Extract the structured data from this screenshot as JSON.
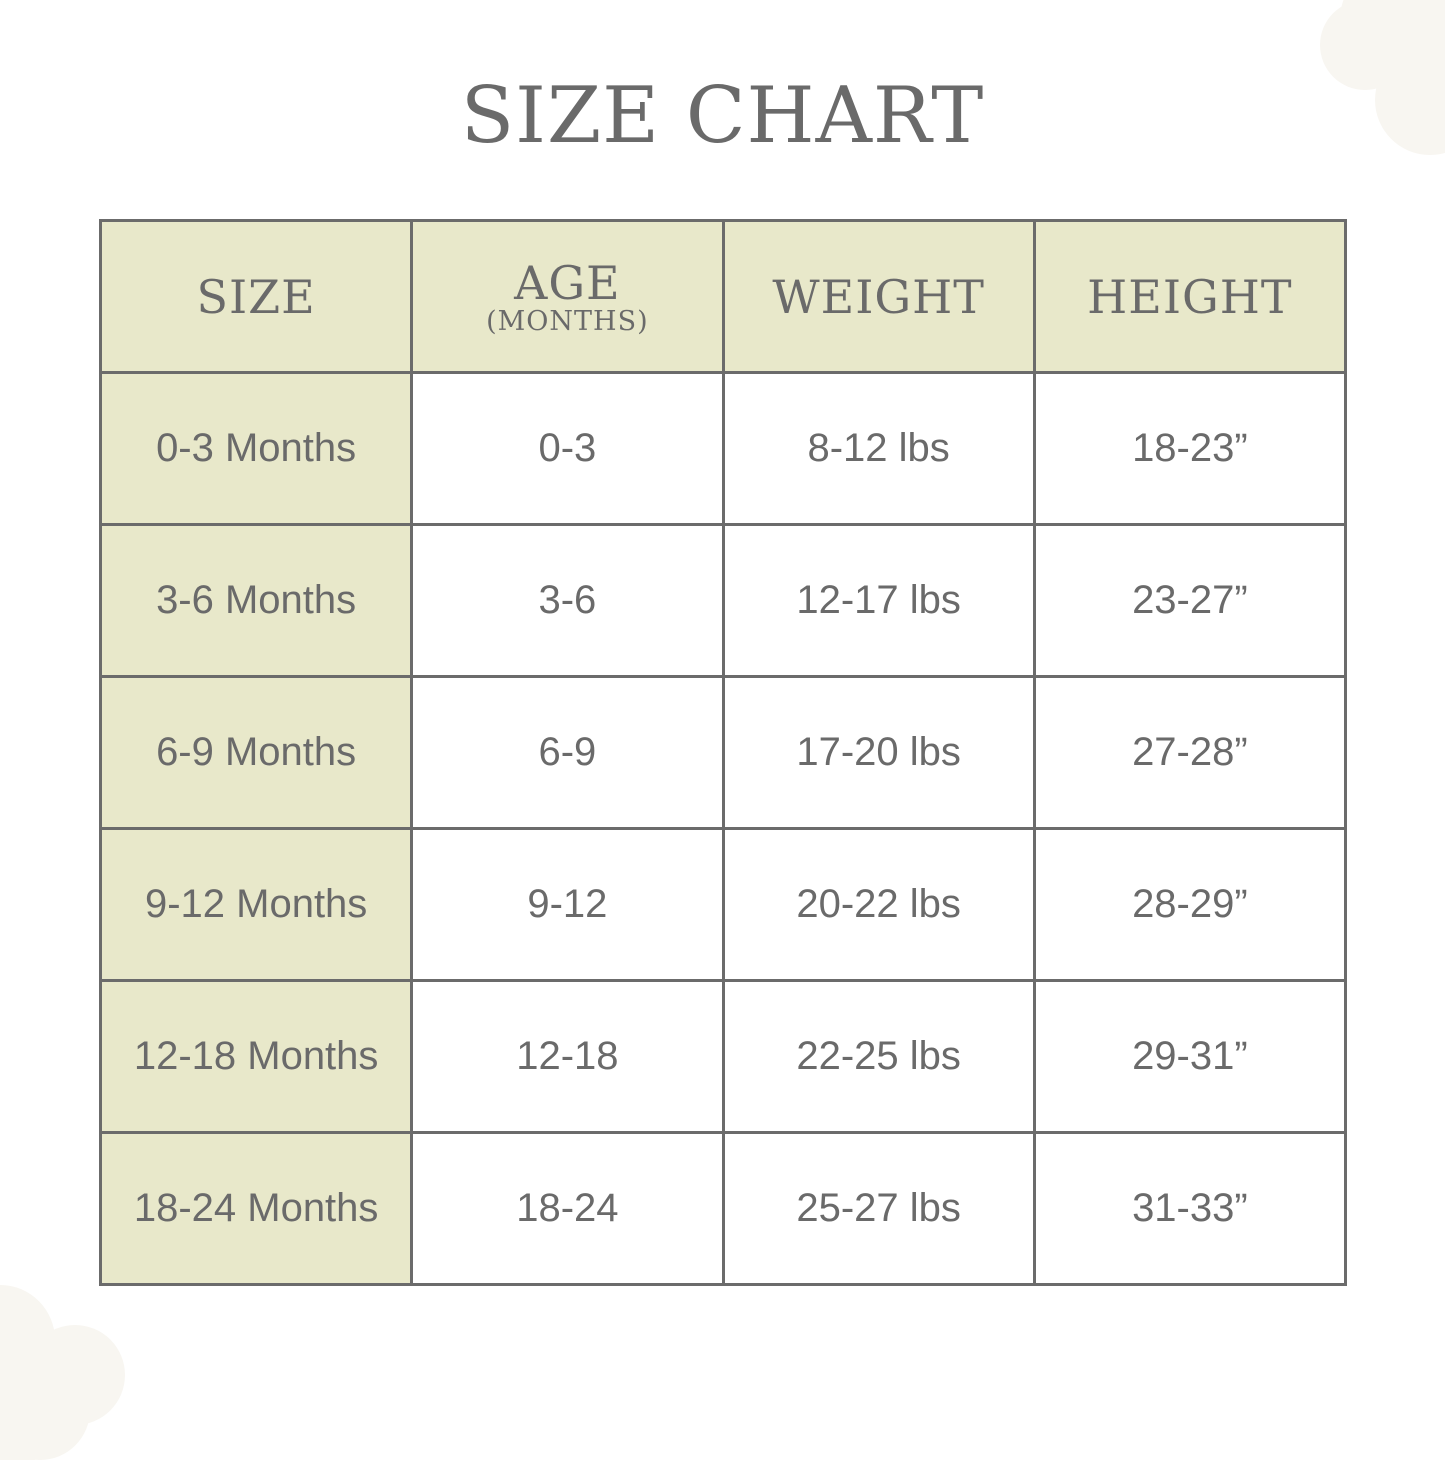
{
  "title": "SIZE CHART",
  "headers": {
    "size": "SIZE",
    "age": "AGE",
    "age_unit": "(MONTHS)",
    "weight": "WEIGHT",
    "height": "HEIGHT"
  },
  "rows": [
    {
      "size": "0-3 Months",
      "age": "0-3",
      "weight": "8-12 lbs",
      "height": "18-23”"
    },
    {
      "size": "3-6 Months",
      "age": "3-6",
      "weight": "12-17 lbs",
      "height": "23-27”"
    },
    {
      "size": "6-9 Months",
      "age": "6-9",
      "weight": "17-20 lbs",
      "height": "27-28”"
    },
    {
      "size": "9-12 Months",
      "age": "9-12",
      "weight": "20-22 lbs",
      "height": "28-29”"
    },
    {
      "size": "12-18 Months",
      "age": "12-18",
      "weight": "22-25 lbs",
      "height": "29-31”"
    },
    {
      "size": "18-24 Months",
      "age": "18-24",
      "weight": "25-27 lbs",
      "height": "31-33”"
    }
  ],
  "colors": {
    "header_bg": "#e8e8ca",
    "border": "#6b6b6b",
    "text": "#6a6a6a",
    "decor": "#f8f6f1"
  }
}
